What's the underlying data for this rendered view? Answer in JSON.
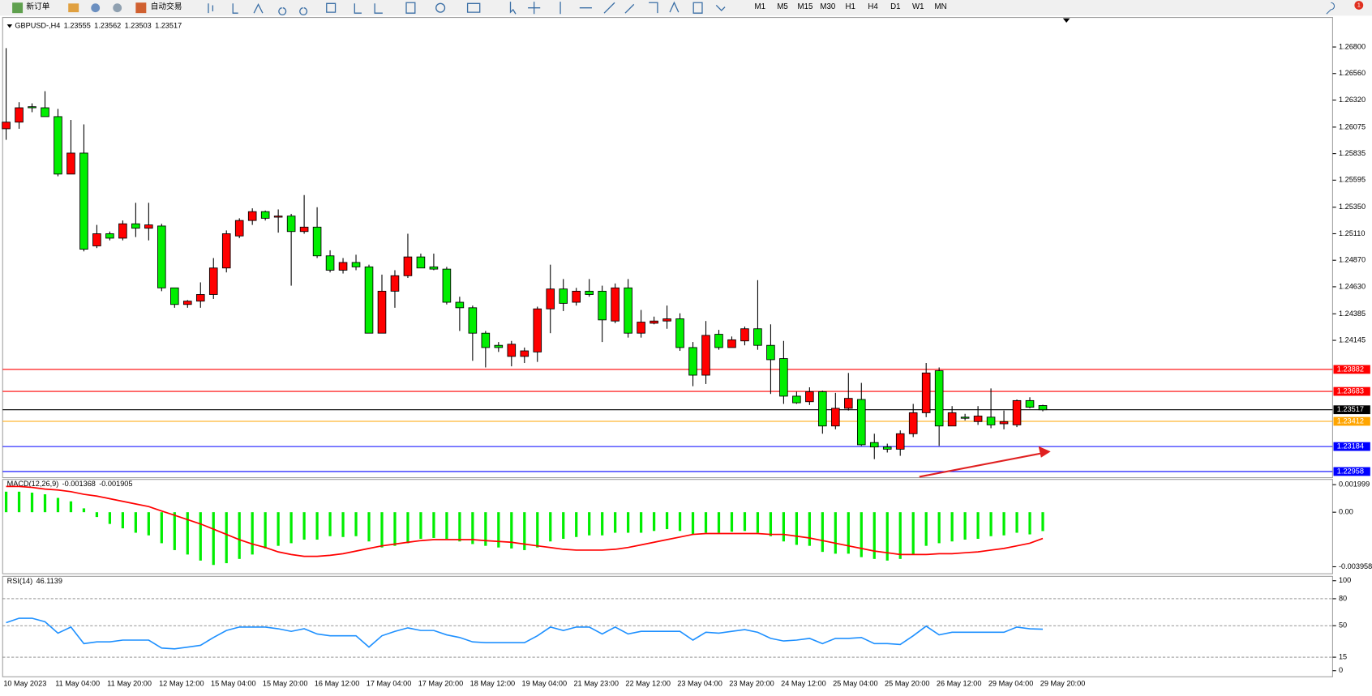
{
  "toolbar": {
    "new_order": "新订单",
    "auto_trading": "自动交易",
    "timeframes": [
      "M1",
      "M5",
      "M15",
      "M30",
      "H1",
      "H4",
      "D1",
      "W1",
      "MN"
    ],
    "notifications": 1
  },
  "chart_data": [
    {
      "type": "candlestick",
      "title": "GBPUSD-,H4",
      "categories": [
        "10 May 2023",
        null,
        null,
        null,
        "11 May 04:00",
        null,
        null,
        null,
        "11 May 20:00",
        null,
        null,
        null,
        "12 May 12:00",
        null,
        null,
        null,
        "15 May 04:00",
        null,
        null,
        null,
        "15 May 20:00",
        null,
        null,
        null,
        "16 May 12:00",
        null,
        null,
        null,
        "17 May 04:00",
        null,
        null,
        null,
        "17 May 20:00",
        null,
        null,
        null,
        "18 May 12:00",
        null,
        null,
        null,
        "19 May 04:00",
        null,
        null,
        null,
        "21 May 23:00",
        null,
        null,
        null,
        "22 May 12:00",
        null,
        null,
        null,
        "23 May 04:00",
        null,
        null,
        null,
        "23 May 20:00",
        null,
        null,
        null,
        "24 May 12:00",
        null,
        null,
        null,
        "25 May 04:00",
        null,
        null,
        null,
        "25 May 20:00",
        null,
        null,
        null,
        "26 May 12:00",
        null,
        null,
        null,
        "29 May 04:00",
        null,
        null,
        null,
        "29 May 20:00"
      ],
      "open": [
        1.2606,
        1.2612,
        1.2626,
        1.2625,
        1.2617,
        1.2565,
        1.2584,
        1.25,
        1.2511,
        1.2507,
        1.252,
        1.2516,
        1.2518,
        1.2462,
        1.2447,
        1.245,
        1.2456,
        1.248,
        1.2509,
        1.2523,
        1.2531,
        1.2526,
        1.2527,
        1.2513,
        1.2517,
        1.2491,
        1.2478,
        1.2485,
        1.2481,
        1.2421,
        1.2459,
        1.2473,
        1.249,
        1.2481,
        1.2479,
        1.2449,
        1.2444,
        1.2421,
        1.241,
        1.24,
        1.24,
        1.2404,
        1.2443,
        1.2461,
        1.2449,
        1.2459,
        1.2459,
        1.2432,
        1.2462,
        1.2421,
        1.243,
        1.2432,
        1.2434,
        1.2408,
        1.2383,
        1.242,
        1.2408,
        1.2414,
        1.2425,
        1.241,
        1.2398,
        1.2364,
        1.2359,
        1.2368,
        1.2337,
        1.2353,
        1.2361,
        1.2322,
        1.2318,
        1.2316,
        1.233,
        1.2349,
        1.2387,
        1.2337,
        1.2345,
        1.2341,
        1.2345,
        1.2339,
        1.2338,
        1.236,
        1.23555
      ],
      "high": [
        1.2679,
        1.263,
        1.2629,
        1.264,
        1.2624,
        1.2614,
        1.261,
        1.2519,
        1.2513,
        1.2523,
        1.2539,
        1.2539,
        1.252,
        1.2462,
        1.2451,
        1.2467,
        1.2489,
        1.2514,
        1.2525,
        1.2534,
        1.2532,
        1.2533,
        1.2529,
        1.2546,
        1.2535,
        1.2496,
        1.2489,
        1.2492,
        1.2483,
        1.2474,
        1.2478,
        1.2511,
        1.2493,
        1.2493,
        1.2481,
        1.2454,
        1.2446,
        1.2423,
        1.2413,
        1.2414,
        1.2408,
        1.2445,
        1.2483,
        1.247,
        1.2462,
        1.247,
        1.2464,
        1.2466,
        1.247,
        1.2442,
        1.2436,
        1.2446,
        1.2439,
        1.2413,
        1.2432,
        1.2424,
        1.2418,
        1.2427,
        1.2469,
        1.2429,
        1.2414,
        1.2368,
        1.2372,
        1.2369,
        1.2367,
        1.2385,
        1.2376,
        1.233,
        1.2321,
        1.2333,
        1.2357,
        1.2394,
        1.239,
        1.2355,
        1.2348,
        1.2355,
        1.2371,
        1.2351,
        1.2361,
        1.2363,
        1.23562
      ],
      "low": [
        1.2596,
        1.2606,
        1.2621,
        1.2617,
        1.2563,
        1.2565,
        1.2495,
        1.2498,
        1.2505,
        1.2505,
        1.2508,
        1.2505,
        1.2459,
        1.2444,
        1.2444,
        1.2444,
        1.2452,
        1.2476,
        1.2507,
        1.2519,
        1.2523,
        1.2512,
        1.2464,
        1.2511,
        1.2489,
        1.2476,
        1.2475,
        1.2478,
        1.2421,
        1.2421,
        1.2444,
        1.2471,
        1.248,
        1.2478,
        1.2447,
        1.2423,
        1.2396,
        1.239,
        1.2404,
        1.2391,
        1.2394,
        1.2395,
        1.2421,
        1.2441,
        1.2446,
        1.2454,
        1.2413,
        1.243,
        1.2417,
        1.2417,
        1.2429,
        1.2425,
        1.2405,
        1.2373,
        1.2375,
        1.2406,
        1.2408,
        1.241,
        1.2406,
        1.2366,
        1.2357,
        1.2357,
        1.2356,
        1.233,
        1.2334,
        1.2351,
        1.2319,
        1.2307,
        1.2313,
        1.231,
        1.2327,
        1.2345,
        1.2319,
        1.2337,
        1.2342,
        1.2338,
        1.2335,
        1.2334,
        1.2336,
        1.2353,
        1.23503
      ],
      "close": [
        1.2612,
        1.2625,
        1.2625,
        1.2617,
        1.2565,
        1.2584,
        1.2497,
        1.2511,
        1.2507,
        1.252,
        1.2516,
        1.2519,
        1.2462,
        1.2447,
        1.245,
        1.2456,
        1.248,
        1.2511,
        1.2523,
        1.2531,
        1.2525,
        1.2527,
        1.2513,
        1.2517,
        1.2491,
        1.2478,
        1.2485,
        1.2481,
        1.2421,
        1.2459,
        1.2473,
        1.249,
        1.248,
        1.2479,
        1.2449,
        1.2444,
        1.2421,
        1.2408,
        1.2408,
        1.2411,
        1.2405,
        1.2443,
        1.2461,
        1.2448,
        1.2459,
        1.2456,
        1.2433,
        1.2462,
        1.2421,
        1.2431,
        1.2432,
        1.2434,
        1.2408,
        1.2383,
        1.2419,
        1.2408,
        1.2415,
        1.2425,
        1.241,
        1.2397,
        1.2364,
        1.2358,
        1.2368,
        1.2337,
        1.2353,
        1.2362,
        1.232,
        1.2318,
        1.2316,
        1.233,
        1.2349,
        1.2385,
        1.2337,
        1.2349,
        1.2344,
        1.2346,
        1.2338,
        1.2341,
        1.236,
        1.2354,
        1.23517
      ],
      "up_color": "#ff0000",
      "down_color": "#00ee00",
      "ylim": [
        1.2291,
        1.2702
      ],
      "yticks": [
        {
          "value": 1.268,
          "label": "1.26800"
        },
        {
          "value": 1.2656,
          "label": "1.26560"
        },
        {
          "value": 1.2632,
          "label": "1.26320"
        },
        1.26075,
        1.25835,
        1.25595,
        {
          "value": 1.2535,
          "label": "1.25350"
        },
        {
          "value": 1.2511,
          "label": "1.25110"
        },
        {
          "value": 1.2487,
          "label": "1.24870"
        },
        {
          "value": 1.2463,
          "label": "1.24630"
        },
        1.24385,
        1.24145
      ],
      "hlines": [
        {
          "value": 1.23882,
          "color": "#ff0000"
        },
        {
          "value": 1.23683,
          "color": "#ff0000"
        },
        {
          "value": 1.23517,
          "color": "#000000"
        },
        {
          "value": 1.23412,
          "color": "#ffa500"
        },
        {
          "value": 1.23184,
          "color": "#0000ff"
        },
        {
          "value": 1.22958,
          "color": "#0000ff"
        }
      ]
    },
    {
      "type": "macd",
      "title": "MACD(12,26,9)",
      "color": "#00ee00",
      "signal_color": "#ff0000",
      "values": [
        0.00149,
        0.00149,
        0.00142,
        0.0013,
        0.00104,
        0.00079,
        0.00028,
        -0.00035,
        -0.00085,
        -0.00117,
        -0.00149,
        -0.00168,
        -0.00225,
        -0.00275,
        -0.00307,
        -0.00351,
        -0.00383,
        -0.0037,
        -0.00339,
        -0.00307,
        -0.00263,
        -0.00244,
        -0.00225,
        -0.00199,
        -0.00199,
        -0.00174,
        -0.0018,
        -0.00174,
        -0.00212,
        -0.00256,
        -0.00244,
        -0.00225,
        -0.00193,
        -0.00187,
        -0.00193,
        -0.00212,
        -0.00231,
        -0.00244,
        -0.00256,
        -0.00263,
        -0.00275,
        -0.00256,
        -0.00212,
        -0.00193,
        -0.0018,
        -0.00168,
        -0.00168,
        -0.00149,
        -0.00149,
        -0.00149,
        -0.00136,
        -0.00123,
        -0.00136,
        -0.00161,
        -0.00149,
        -0.00149,
        -0.00142,
        -0.00136,
        -0.00149,
        -0.00174,
        -0.00212,
        -0.00237,
        -0.00244,
        -0.00288,
        -0.00301,
        -0.00301,
        -0.00326,
        -0.00339,
        -0.00351,
        -0.00339,
        -0.00307,
        -0.00244,
        -0.00225,
        -0.00212,
        -0.00199,
        -0.00193,
        -0.00174,
        -0.00168,
        -0.00149,
        -0.00161,
        -0.001368
      ],
      "signal": [
        0.00187,
        0.00187,
        0.0018,
        0.00168,
        0.00161,
        0.00149,
        0.0013,
        0.00117,
        0.00098,
        0.00079,
        0.0006,
        0.00041,
        9e-05,
        -0.00022,
        -0.00054,
        -0.00085,
        -0.00123,
        -0.00161,
        -0.00199,
        -0.00231,
        -0.00256,
        -0.00288,
        -0.00307,
        -0.0032,
        -0.0032,
        -0.00313,
        -0.00301,
        -0.00282,
        -0.00263,
        -0.00244,
        -0.00231,
        -0.00218,
        -0.00206,
        -0.00199,
        -0.00199,
        -0.00199,
        -0.00199,
        -0.00206,
        -0.00212,
        -0.00218,
        -0.00231,
        -0.00244,
        -0.00256,
        -0.00269,
        -0.00275,
        -0.00275,
        -0.00275,
        -0.00269,
        -0.00256,
        -0.00237,
        -0.00218,
        -0.00199,
        -0.0018,
        -0.00161,
        -0.00155,
        -0.00155,
        -0.00155,
        -0.00155,
        -0.00155,
        -0.00161,
        -0.00161,
        -0.00174,
        -0.00187,
        -0.00206,
        -0.00225,
        -0.00244,
        -0.00263,
        -0.00282,
        -0.00294,
        -0.00307,
        -0.00307,
        -0.00307,
        -0.00301,
        -0.00301,
        -0.00294,
        -0.00288,
        -0.00275,
        -0.00263,
        -0.00244,
        -0.00225,
        -0.001905
      ],
      "ylim": [
        -0.003958,
        0.001999
      ],
      "yticks": [
        0.001999,
        {
          "value": 0,
          "label": "0.00"
        },
        -0.003958
      ]
    },
    {
      "type": "line",
      "title": "RSI(14)",
      "color": "#1e90ff",
      "values": [
        53.4,
        58.3,
        58.3,
        54.4,
        41.7,
        48.5,
        30.1,
        32.0,
        32.0,
        34.0,
        34.0,
        34.0,
        25.2,
        24.3,
        26.2,
        28.2,
        36.9,
        44.7,
        48.5,
        48.5,
        48.5,
        46.6,
        43.7,
        46.6,
        40.8,
        38.8,
        38.8,
        38.8,
        26.2,
        38.8,
        43.7,
        47.6,
        44.7,
        44.7,
        39.8,
        36.9,
        32.0,
        31.1,
        31.1,
        31.1,
        31.1,
        38.8,
        48.5,
        44.7,
        48.5,
        48.5,
        40.8,
        48.5,
        40.8,
        43.7,
        43.7,
        43.7,
        43.7,
        34.0,
        42.7,
        41.7,
        43.7,
        45.6,
        42.7,
        35.9,
        33.0,
        34.0,
        35.9,
        30.1,
        35.9,
        35.9,
        36.9,
        30.1,
        30.1,
        29.1,
        38.8,
        49.5,
        39.8,
        42.7,
        42.7,
        42.7,
        42.7,
        42.7,
        48.5,
        46.6,
        46.1139
      ],
      "ylim": [
        0,
        100
      ],
      "yticks": [
        100,
        80,
        50,
        15,
        0
      ]
    }
  ]
}
